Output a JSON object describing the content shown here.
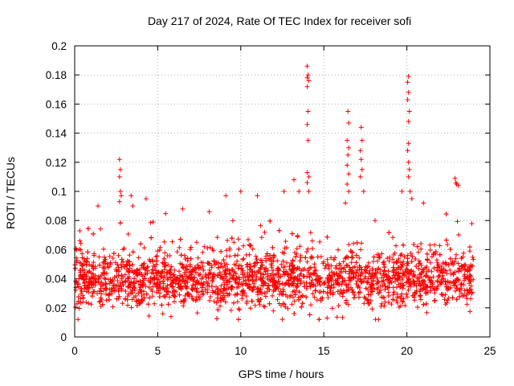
{
  "chart_data": {
    "type": "scatter",
    "title": "Day 217 of 2024, Rate Of TEC Index for receiver sofi",
    "xlabel": "GPS time / hours",
    "ylabel": "ROTI / TECUs",
    "xlim": [
      0,
      25
    ],
    "ylim": [
      0,
      0.2
    ],
    "x_ticks": [
      0,
      5,
      10,
      15,
      20,
      25
    ],
    "x_tick_labels": [
      "0",
      "5",
      "10",
      "15",
      "20",
      "25"
    ],
    "y_ticks": [
      0,
      0.02,
      0.04,
      0.06,
      0.08,
      0.1,
      0.12,
      0.14,
      0.16,
      0.18,
      0.2
    ],
    "y_tick_labels": [
      "0",
      "0.02",
      "0.04",
      "0.06",
      "0.08",
      "0.1",
      "0.12",
      "0.14",
      "0.16",
      "0.18",
      "0.2"
    ],
    "grid": true,
    "marker": "+",
    "series": [
      {
        "name": "ROTI",
        "color": "#ff0000",
        "bulk": {
          "x_range": [
            0,
            24
          ],
          "typical_range": [
            0.015,
            0.07
          ],
          "center": 0.04,
          "count": 2600
        },
        "points": [
          {
            "x": 2.7,
            "y": 0.122
          },
          {
            "x": 2.75,
            "y": 0.115
          },
          {
            "x": 2.7,
            "y": 0.11
          },
          {
            "x": 2.75,
            "y": 0.1
          },
          {
            "x": 2.8,
            "y": 0.097
          },
          {
            "x": 2.7,
            "y": 0.093
          },
          {
            "x": 3.4,
            "y": 0.097
          },
          {
            "x": 3.5,
            "y": 0.09
          },
          {
            "x": 4.3,
            "y": 0.095
          },
          {
            "x": 9.1,
            "y": 0.097
          },
          {
            "x": 10.0,
            "y": 0.1
          },
          {
            "x": 11.0,
            "y": 0.097
          },
          {
            "x": 12.6,
            "y": 0.1
          },
          {
            "x": 13.2,
            "y": 0.108
          },
          {
            "x": 13.5,
            "y": 0.1
          },
          {
            "x": 14.0,
            "y": 0.186
          },
          {
            "x": 14.05,
            "y": 0.18
          },
          {
            "x": 14.0,
            "y": 0.178
          },
          {
            "x": 14.1,
            "y": 0.176
          },
          {
            "x": 14.0,
            "y": 0.172
          },
          {
            "x": 14.05,
            "y": 0.155
          },
          {
            "x": 14.0,
            "y": 0.146
          },
          {
            "x": 14.05,
            "y": 0.135
          },
          {
            "x": 14.0,
            "y": 0.113
          },
          {
            "x": 14.1,
            "y": 0.11
          },
          {
            "x": 14.0,
            "y": 0.106
          },
          {
            "x": 14.1,
            "y": 0.1
          },
          {
            "x": 16.45,
            "y": 0.155
          },
          {
            "x": 16.5,
            "y": 0.147
          },
          {
            "x": 16.4,
            "y": 0.135
          },
          {
            "x": 16.5,
            "y": 0.13
          },
          {
            "x": 16.45,
            "y": 0.125
          },
          {
            "x": 16.4,
            "y": 0.118
          },
          {
            "x": 16.5,
            "y": 0.112
          },
          {
            "x": 16.4,
            "y": 0.105
          },
          {
            "x": 16.5,
            "y": 0.1
          },
          {
            "x": 16.3,
            "y": 0.092
          },
          {
            "x": 17.25,
            "y": 0.144
          },
          {
            "x": 17.3,
            "y": 0.135
          },
          {
            "x": 17.2,
            "y": 0.128
          },
          {
            "x": 17.25,
            "y": 0.122
          },
          {
            "x": 17.3,
            "y": 0.115
          },
          {
            "x": 17.2,
            "y": 0.11
          },
          {
            "x": 17.4,
            "y": 0.1
          },
          {
            "x": 19.7,
            "y": 0.1
          },
          {
            "x": 20.1,
            "y": 0.179
          },
          {
            "x": 20.05,
            "y": 0.175
          },
          {
            "x": 20.1,
            "y": 0.168
          },
          {
            "x": 20.05,
            "y": 0.163
          },
          {
            "x": 20.15,
            "y": 0.155
          },
          {
            "x": 20.1,
            "y": 0.148
          },
          {
            "x": 20.1,
            "y": 0.133
          },
          {
            "x": 20.05,
            "y": 0.128
          },
          {
            "x": 20.1,
            "y": 0.12
          },
          {
            "x": 20.15,
            "y": 0.115
          },
          {
            "x": 20.1,
            "y": 0.11
          },
          {
            "x": 20.2,
            "y": 0.1
          },
          {
            "x": 20.3,
            "y": 0.095
          },
          {
            "x": 21.0,
            "y": 0.092
          },
          {
            "x": 22.9,
            "y": 0.109
          },
          {
            "x": 22.95,
            "y": 0.106
          },
          {
            "x": 23.0,
            "y": 0.105
          },
          {
            "x": 23.1,
            "y": 0.104
          },
          {
            "x": 1.4,
            "y": 0.09
          },
          {
            "x": 6.5,
            "y": 0.088
          },
          {
            "x": 8.1,
            "y": 0.086
          },
          {
            "x": 0.2,
            "y": 0.012
          },
          {
            "x": 5.8,
            "y": 0.014
          },
          {
            "x": 12.5,
            "y": 0.012
          },
          {
            "x": 15.2,
            "y": 0.013
          },
          {
            "x": 18.3,
            "y": 0.012
          }
        ]
      }
    ]
  }
}
